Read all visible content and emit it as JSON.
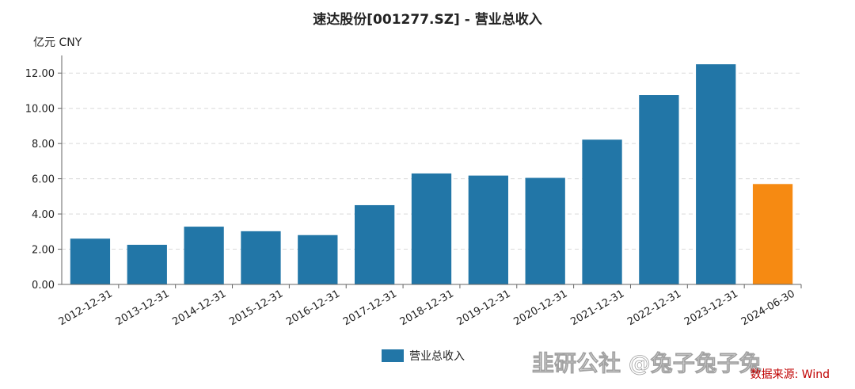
{
  "chart_data": {
    "type": "bar",
    "title": "速达股份[001277.SZ] - 营业总收入",
    "unit": "亿元  CNY",
    "ylabel": "",
    "xlabel": "",
    "ylim": [
      0,
      13
    ],
    "yticks": [
      "0.00",
      "2.00",
      "4.00",
      "6.00",
      "8.00",
      "10.00",
      "12.00"
    ],
    "categories": [
      "2012-12-31",
      "2013-12-31",
      "2014-12-31",
      "2015-12-31",
      "2016-12-31",
      "2017-12-31",
      "2018-12-31",
      "2019-12-31",
      "2020-12-31",
      "2021-12-31",
      "2022-12-31",
      "2023-12-31",
      "2024-06-30"
    ],
    "series": [
      {
        "name": "营业总收入",
        "values": [
          2.6,
          2.25,
          3.28,
          3.02,
          2.8,
          4.5,
          6.3,
          6.18,
          6.05,
          8.22,
          10.75,
          12.5,
          5.7
        ]
      }
    ],
    "colors": {
      "bar": "#2276a7",
      "highlight": "#f68a12",
      "grid": "#d9d9d9",
      "axis": "#666666"
    },
    "highlight_index": 12,
    "grid": true,
    "legend_position": "bottom-center",
    "source": "数据来源: Wind",
    "watermark": "韭研公社 @兔子兔子兔"
  }
}
